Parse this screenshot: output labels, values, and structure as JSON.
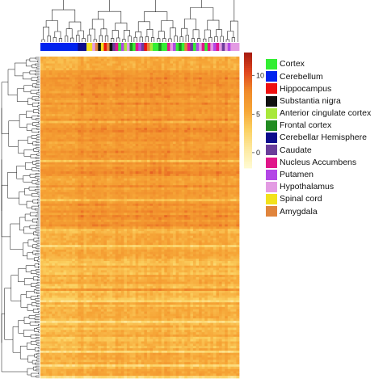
{
  "chart_data": {
    "type": "heatmap",
    "title": "",
    "xlabel": "",
    "ylabel": "",
    "color_scale": {
      "ticks": [
        0,
        5,
        10
      ],
      "range": [
        -2,
        13
      ],
      "colors": [
        "#fffbd2",
        "#fde9a0",
        "#fbd060",
        "#f6a536",
        "#f08a2a",
        "#e0461e",
        "#a51a10"
      ]
    },
    "legend": {
      "placement": "right",
      "entries": [
        {
          "label": "Cortex",
          "color": "#33ee33"
        },
        {
          "label": "Cerebellum",
          "color": "#0022ee"
        },
        {
          "label": "Hippocampus",
          "color": "#ee1111"
        },
        {
          "label": "Substantia nigra",
          "color": "#111111"
        },
        {
          "label": "Anterior cingulate cortex",
          "color": "#a8e83a"
        },
        {
          "label": "Frontal cortex",
          "color": "#228b22"
        },
        {
          "label": "Cerebellar Hemisphere",
          "color": "#0c0c8c"
        },
        {
          "label": "Caudate",
          "color": "#6a3d9a"
        },
        {
          "label": "Nucleus Accumbens",
          "color": "#e0158a"
        },
        {
          "label": "Putamen",
          "color": "#b347e6"
        },
        {
          "label": "Hypothalamus",
          "color": "#e39be3"
        },
        {
          "label": "Spinal cord",
          "color": "#f2e11c"
        },
        {
          "label": "Amygdala",
          "color": "#e0843c"
        }
      ]
    },
    "column_annotation": [
      "Cerebellum",
      "Cerebellum",
      "Cerebellum",
      "Cerebellum",
      "Cerebellum",
      "Cerebellum",
      "Cerebellum",
      "Cerebellum",
      "Cerebellum",
      "Cerebellum",
      "Cerebellum",
      "Cerebellum",
      "Cerebellum",
      "Cerebellar Hemisphere",
      "Cerebellar Hemisphere",
      "Cerebellar Hemisphere",
      "Spinal cord",
      "Spinal cord",
      "Hypothalamus",
      "Amygdala",
      "Substantia nigra",
      "Spinal cord",
      "Hippocampus",
      "Amygdala",
      "Substantia nigra",
      "Caudate",
      "Nucleus Accumbens",
      "Cortex",
      "Putamen",
      "Anterior cingulate cortex",
      "Hypothalamus",
      "Frontal cortex",
      "Cortex",
      "Nucleus Accumbens",
      "Putamen",
      "Caudate",
      "Hippocampus",
      "Amygdala",
      "Anterior cingulate cortex",
      "Cortex",
      "Cortex",
      "Frontal cortex",
      "Cortex",
      "Cortex",
      "Nucleus Accumbens",
      "Hypothalamus",
      "Putamen",
      "Cortex",
      "Frontal cortex",
      "Cortex",
      "Amygdala",
      "Nucleus Accumbens",
      "Caudate",
      "Cortex",
      "Putamen",
      "Hypothalamus",
      "Nucleus Accumbens",
      "Cortex",
      "Nucleus Accumbens",
      "Hypothalamus",
      "Putamen",
      "Nucleus Accumbens",
      "Hypothalamus",
      "Caudate",
      "Hypothalamus",
      "Putamen",
      "Hypothalamus",
      "Hypothalamus",
      "Hypothalamus"
    ]
  }
}
